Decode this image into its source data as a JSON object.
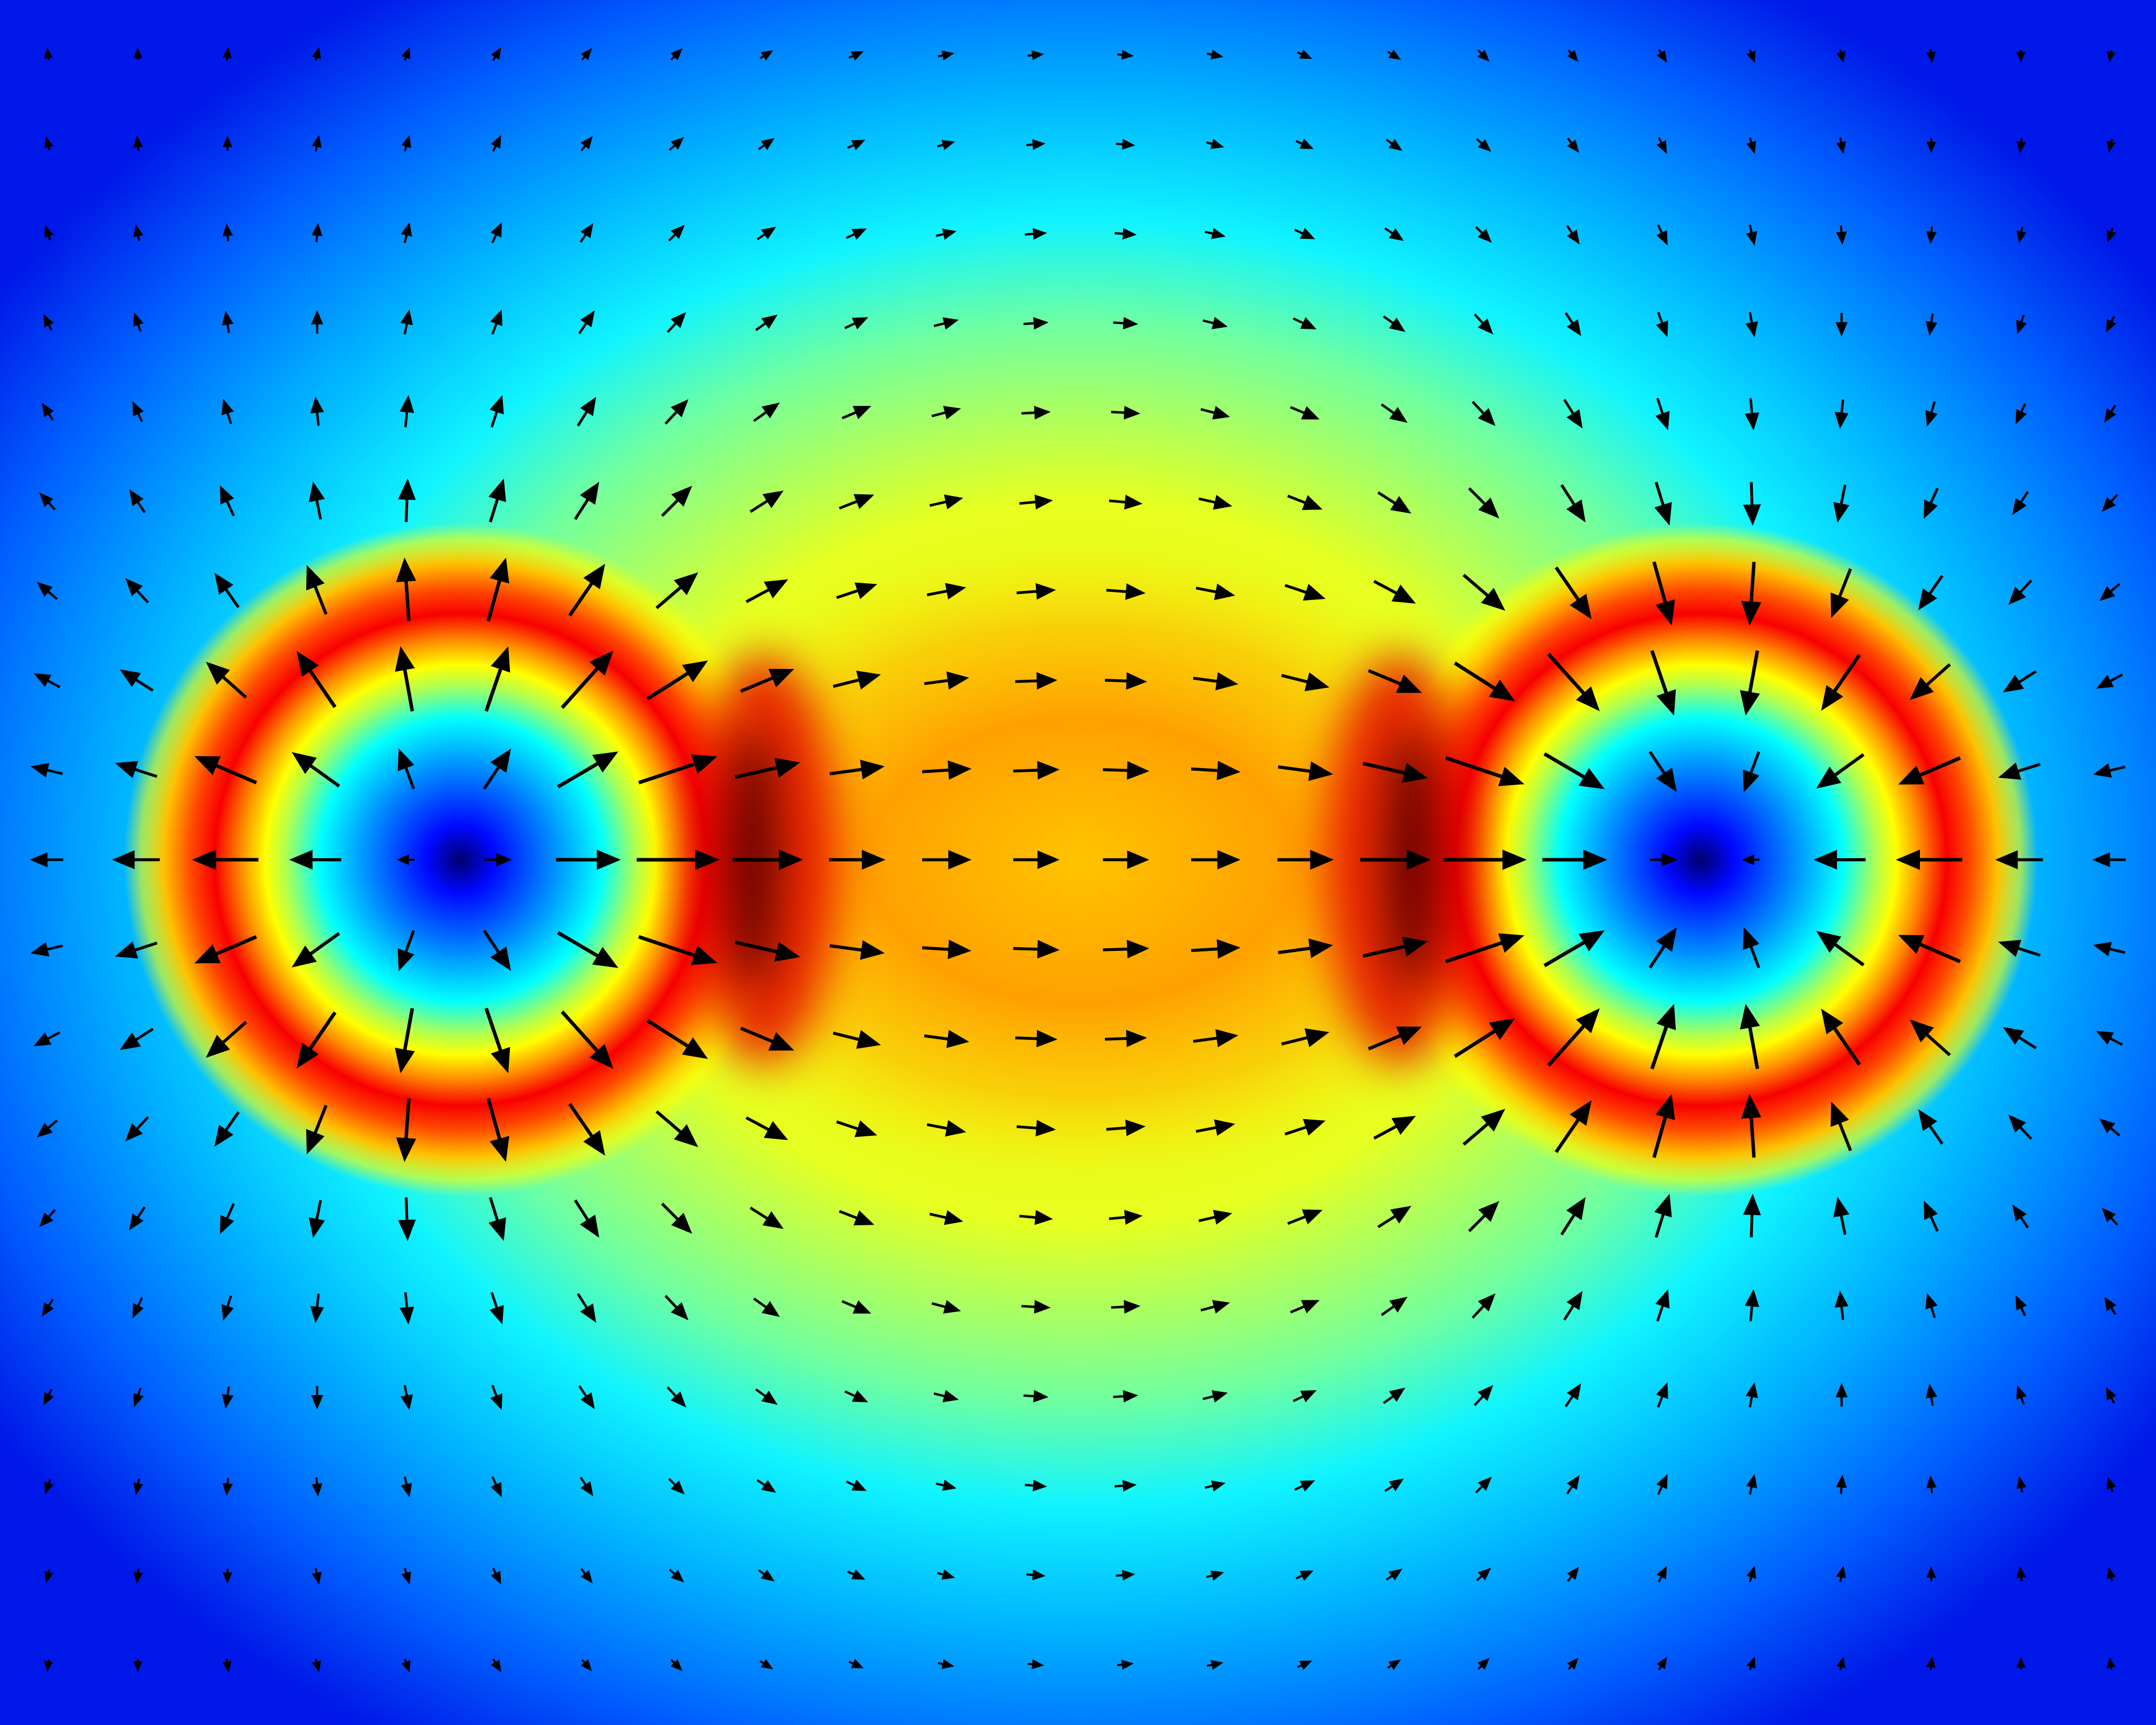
{
  "chart_data": {
    "type": "quiver",
    "color": "#000000",
    "u": [
      [
        -1,
        0,
        1,
        2,
        3,
        5,
        6,
        7,
        8,
        9,
        10,
        10,
        10,
        10,
        9,
        8,
        7,
        6,
        5,
        3,
        2,
        1,
        0,
        -1
      ],
      [
        -2,
        -1,
        0,
        2,
        3,
        5,
        7,
        9,
        10,
        11,
        11,
        12,
        12,
        11,
        11,
        10,
        9,
        7,
        5,
        3,
        2,
        0,
        -1,
        -2
      ],
      [
        -3,
        -2,
        -1,
        1,
        3,
        6,
        8,
        10,
        12,
        13,
        13,
        14,
        14,
        13,
        13,
        12,
        10,
        8,
        6,
        3,
        1,
        -1,
        -2,
        -3
      ],
      [
        -5,
        -4,
        -2,
        0,
        3,
        6,
        10,
        12,
        14,
        15,
        16,
        16,
        16,
        16,
        15,
        14,
        12,
        10,
        6,
        3,
        0,
        -2,
        -4,
        -5
      ],
      [
        -7,
        -6,
        -5,
        -2,
        2,
        7,
        12,
        15,
        17,
        19,
        19,
        19,
        19,
        19,
        19,
        17,
        15,
        12,
        7,
        2,
        -2,
        -5,
        -6,
        -7
      ],
      [
        -10,
        -10,
        -9,
        -5,
        1,
        9,
        16,
        20,
        22,
        23,
        22,
        22,
        22,
        22,
        23,
        22,
        20,
        16,
        9,
        1,
        -5,
        -9,
        -10,
        -10
      ],
      [
        -13,
        -15,
        -16,
        -13,
        -3,
        12,
        24,
        28,
        28,
        27,
        26,
        26,
        26,
        26,
        27,
        28,
        28,
        24,
        12,
        -3,
        -13,
        -16,
        -15,
        -13
      ],
      [
        -17,
        -22,
        -27,
        -26,
        -8,
        15,
        35,
        41,
        36,
        32,
        30,
        28,
        28,
        30,
        32,
        36,
        41,
        35,
        15,
        -8,
        -26,
        -27,
        -22,
        -17
      ],
      [
        -21,
        -28,
        -42,
        -32,
        -10,
        18,
        41,
        54,
        44,
        37,
        33,
        31,
        31,
        33,
        37,
        44,
        54,
        41,
        18,
        -10,
        -32,
        -42,
        -28,
        -21
      ],
      [
        -22,
        -32,
        -45,
        -35,
        -11,
        18,
        44,
        57,
        48,
        38,
        33,
        31,
        31,
        33,
        38,
        48,
        57,
        44,
        18,
        -11,
        -35,
        -45,
        -32,
        -22
      ],
      [
        -21,
        -28,
        -42,
        -32,
        -10,
        18,
        41,
        54,
        44,
        37,
        33,
        31,
        31,
        33,
        37,
        44,
        54,
        41,
        18,
        -10,
        -32,
        -42,
        -28,
        -21
      ],
      [
        -17,
        -22,
        -27,
        -26,
        -8,
        15,
        35,
        41,
        36,
        32,
        30,
        28,
        28,
        30,
        32,
        36,
        41,
        35,
        15,
        -8,
        -26,
        -27,
        -22,
        -17
      ],
      [
        -13,
        -15,
        -16,
        -13,
        -3,
        12,
        24,
        28,
        28,
        27,
        26,
        26,
        26,
        26,
        27,
        28,
        28,
        24,
        12,
        -3,
        -13,
        -16,
        -15,
        -13
      ],
      [
        -10,
        -10,
        -9,
        -5,
        1,
        9,
        16,
        20,
        22,
        23,
        22,
        22,
        22,
        22,
        23,
        22,
        20,
        16,
        9,
        1,
        -5,
        -9,
        -10,
        -10
      ],
      [
        -7,
        -6,
        -5,
        -2,
        2,
        7,
        12,
        15,
        17,
        19,
        19,
        19,
        19,
        19,
        19,
        17,
        15,
        12,
        7,
        2,
        -2,
        -5,
        -6,
        -7
      ],
      [
        -5,
        -4,
        -2,
        0,
        3,
        6,
        10,
        12,
        14,
        15,
        16,
        16,
        16,
        16,
        15,
        14,
        12,
        10,
        6,
        3,
        0,
        -2,
        -4,
        -5
      ],
      [
        -3,
        -2,
        -1,
        1,
        3,
        6,
        8,
        10,
        12,
        13,
        13,
        14,
        14,
        13,
        13,
        12,
        10,
        8,
        6,
        3,
        1,
        -1,
        -2,
        -3
      ],
      [
        -2,
        -1,
        0,
        2,
        3,
        5,
        7,
        9,
        10,
        11,
        11,
        12,
        12,
        11,
        11,
        10,
        9,
        7,
        5,
        3,
        2,
        0,
        -1,
        -2
      ],
      [
        -1,
        0,
        1,
        2,
        3,
        5,
        6,
        7,
        8,
        9,
        10,
        10,
        10,
        10,
        9,
        8,
        7,
        6,
        5,
        3,
        2,
        1,
        0,
        -1
      ]
    ],
    "v": [
      [
        -7,
        -7,
        -8,
        -8,
        -8,
        -8,
        -7,
        -7,
        -5,
        -4,
        -2,
        -1,
        1,
        2,
        4,
        5,
        7,
        7,
        8,
        8,
        8,
        8,
        7,
        7
      ],
      [
        -8,
        -9,
        -9,
        -10,
        -10,
        -10,
        -9,
        -8,
        -7,
        -5,
        -3,
        -1,
        1,
        3,
        5,
        7,
        8,
        9,
        10,
        10,
        10,
        9,
        9,
        8
      ],
      [
        -9,
        -10,
        -11,
        -12,
        -13,
        -13,
        -12,
        -10,
        -8,
        -6,
        -3,
        -1,
        1,
        3,
        6,
        8,
        10,
        12,
        13,
        13,
        12,
        11,
        10,
        9
      ],
      [
        -10,
        -12,
        -14,
        -15,
        -16,
        -16,
        -15,
        -13,
        -10,
        -7,
        -4,
        -1,
        1,
        4,
        7,
        10,
        13,
        15,
        16,
        16,
        15,
        14,
        12,
        10
      ],
      [
        -11,
        -13,
        -16,
        -19,
        -21,
        -21,
        -19,
        -16,
        -12,
        -8,
        -5,
        -1,
        1,
        5,
        8,
        12,
        16,
        19,
        21,
        21,
        19,
        16,
        13,
        11
      ],
      [
        -11,
        -15,
        -20,
        -25,
        -29,
        -29,
        -25,
        -20,
        -14,
        -9,
        -5,
        -2,
        2,
        5,
        9,
        14,
        20,
        25,
        29,
        29,
        25,
        20,
        15,
        11
      ],
      [
        -11,
        -16,
        -23,
        -33,
        -43,
        -43,
        -35,
        -24,
        -15,
        -9,
        -5,
        -2,
        2,
        5,
        9,
        15,
        24,
        35,
        43,
        43,
        33,
        23,
        16,
        11
      ],
      [
        -9,
        -14,
        -24,
        -38,
        -44,
        -44,
        -39,
        -26,
        -15,
        -8,
        -4,
        -1,
        1,
        4,
        8,
        15,
        26,
        39,
        44,
        44,
        38,
        24,
        14,
        9
      ],
      [
        -5,
        -9,
        -18,
        -23,
        -27,
        -27,
        -24,
        -18,
        -10,
        -5,
        -2,
        -1,
        1,
        2,
        5,
        10,
        18,
        24,
        27,
        27,
        23,
        18,
        9,
        5
      ],
      [
        0,
        0,
        0,
        0,
        0,
        0,
        0,
        0,
        0,
        0,
        0,
        0,
        0,
        0,
        0,
        0,
        0,
        0,
        0,
        0,
        0,
        0,
        0,
        0
      ],
      [
        5,
        9,
        18,
        23,
        27,
        27,
        24,
        18,
        10,
        5,
        2,
        1,
        -1,
        -2,
        -5,
        -10,
        -18,
        -24,
        -27,
        -27,
        -23,
        -18,
        -9,
        -5
      ],
      [
        9,
        14,
        24,
        38,
        44,
        44,
        39,
        26,
        15,
        8,
        4,
        1,
        -1,
        -4,
        -8,
        -15,
        -26,
        -39,
        -44,
        -44,
        -38,
        -24,
        -14,
        -9
      ],
      [
        11,
        16,
        23,
        33,
        43,
        43,
        35,
        24,
        15,
        9,
        5,
        2,
        -2,
        -5,
        -9,
        -15,
        -24,
        -35,
        -43,
        -43,
        -33,
        -23,
        -16,
        -11
      ],
      [
        11,
        15,
        20,
        25,
        29,
        29,
        25,
        20,
        14,
        9,
        5,
        2,
        -2,
        -5,
        -9,
        -14,
        -20,
        -25,
        -29,
        -29,
        -25,
        -20,
        -15,
        -11
      ],
      [
        11,
        13,
        16,
        19,
        21,
        21,
        19,
        16,
        12,
        8,
        5,
        1,
        -1,
        -5,
        -8,
        -12,
        -16,
        -19,
        -21,
        -21,
        -19,
        -16,
        -13,
        -11
      ],
      [
        10,
        12,
        14,
        15,
        16,
        16,
        15,
        13,
        10,
        7,
        4,
        1,
        -1,
        -4,
        -7,
        -10,
        -13,
        -15,
        -16,
        -16,
        -15,
        -14,
        -12,
        -10
      ],
      [
        9,
        10,
        11,
        12,
        13,
        13,
        12,
        10,
        8,
        6,
        3,
        1,
        -1,
        -3,
        -6,
        -8,
        -10,
        -12,
        -13,
        -13,
        -12,
        -11,
        -10,
        -9
      ],
      [
        8,
        9,
        9,
        10,
        10,
        10,
        9,
        8,
        7,
        5,
        3,
        1,
        -1,
        -3,
        -5,
        -7,
        -8,
        -9,
        -10,
        -10,
        -10,
        -9,
        -9,
        -8
      ],
      [
        7,
        7,
        8,
        8,
        8,
        8,
        7,
        7,
        5,
        4,
        2,
        1,
        -1,
        -2,
        -4,
        -5,
        -7,
        -7,
        -8,
        -8,
        -8,
        -8,
        -7,
        -7
      ]
    ]
  }
}
